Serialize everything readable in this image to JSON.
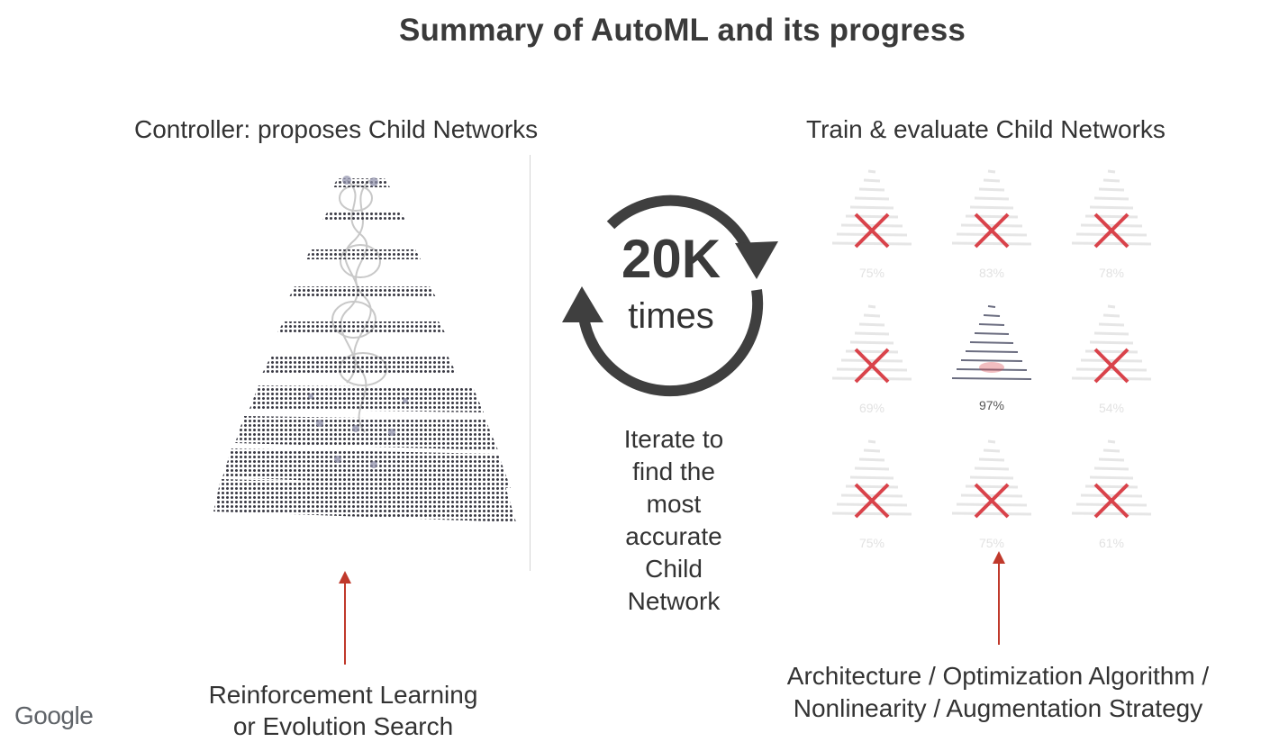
{
  "title": "Summary of AutoML and its progress",
  "left_panel": {
    "heading": "Controller: proposes Child Networks",
    "caption_lines": [
      "Reinforcement Learning",
      "or Evolution Search"
    ]
  },
  "center": {
    "count": "20K",
    "unit": "times",
    "description_lines": [
      "Iterate to",
      "find the",
      "most",
      "accurate",
      "Child",
      "Network"
    ]
  },
  "right_panel": {
    "heading": "Train & evaluate Child Networks",
    "children": [
      {
        "accuracy": "75%",
        "rejected": true
      },
      {
        "accuracy": "83%",
        "rejected": true
      },
      {
        "accuracy": "78%",
        "rejected": true
      },
      {
        "accuracy": "69%",
        "rejected": true
      },
      {
        "accuracy": "97%",
        "rejected": false
      },
      {
        "accuracy": "54%",
        "rejected": true
      },
      {
        "accuracy": "75%",
        "rejected": true
      },
      {
        "accuracy": "75%",
        "rejected": true
      },
      {
        "accuracy": "61%",
        "rejected": true
      }
    ],
    "caption_lines": [
      "Architecture / Optimization Algorithm /",
      "Nonlinearity / Augmentation Strategy"
    ]
  },
  "footer": {
    "logo": "Google"
  },
  "colors": {
    "accent_red": "#d9434b",
    "arrow_red": "#c0392b",
    "cycle_gray": "#3f3f3f"
  }
}
